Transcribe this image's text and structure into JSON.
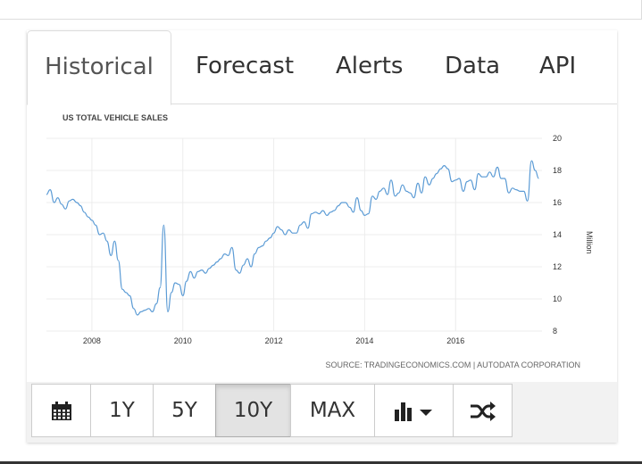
{
  "tabs": [
    {
      "label": "Historical"
    },
    {
      "label": "Forecast"
    },
    {
      "label": "Alerts"
    },
    {
      "label": "Data"
    },
    {
      "label": "API"
    }
  ],
  "toolbar": {
    "calendar_icon": "calendar-icon",
    "range_buttons": [
      "1Y",
      "5Y",
      "10Y",
      "MAX"
    ],
    "active_range": "10Y",
    "chart_type_icon": "bar-chart-icon",
    "dropdown_icon": "caret-down-icon",
    "compare_icon": "shuffle-icon"
  },
  "chart_data": {
    "type": "line",
    "title": "US TOTAL VEHICLE SALES",
    "ylabel": "Million",
    "source": "SOURCE: TRADINGECONOMICS.COM | AUTODATA CORPORATION",
    "ylim": [
      8,
      20
    ],
    "yticks": [
      8,
      10,
      12,
      14,
      16,
      18,
      20
    ],
    "xlim": [
      2007.0,
      2017.9
    ],
    "xticks": [
      2008,
      2010,
      2012,
      2014,
      2016
    ],
    "grid": true,
    "line_color": "#5b9bd5",
    "series": [
      {
        "x": [
          2007.0,
          2007.08,
          2007.17,
          2007.25,
          2007.33,
          2007.42,
          2007.5,
          2007.58,
          2007.67,
          2007.75,
          2007.83,
          2007.92,
          2008.0,
          2008.08,
          2008.17,
          2008.25,
          2008.33,
          2008.42,
          2008.5,
          2008.58,
          2008.67,
          2008.75,
          2008.83,
          2008.92,
          2009.0,
          2009.08,
          2009.17,
          2009.25,
          2009.33,
          2009.42,
          2009.5,
          2009.58,
          2009.67,
          2009.75,
          2009.83,
          2009.92,
          2010.0,
          2010.08,
          2010.17,
          2010.25,
          2010.33,
          2010.42,
          2010.5,
          2010.58,
          2010.67,
          2010.75,
          2010.83,
          2010.92,
          2011.0,
          2011.08,
          2011.17,
          2011.25,
          2011.33,
          2011.42,
          2011.5,
          2011.58,
          2011.67,
          2011.75,
          2011.83,
          2011.92,
          2012.0,
          2012.08,
          2012.17,
          2012.25,
          2012.33,
          2012.42,
          2012.5,
          2012.58,
          2012.67,
          2012.75,
          2012.83,
          2012.92,
          2013.0,
          2013.08,
          2013.17,
          2013.25,
          2013.33,
          2013.42,
          2013.5,
          2013.58,
          2013.67,
          2013.75,
          2013.83,
          2013.92,
          2014.0,
          2014.08,
          2014.17,
          2014.25,
          2014.33,
          2014.42,
          2014.5,
          2014.58,
          2014.67,
          2014.75,
          2014.83,
          2014.92,
          2015.0,
          2015.08,
          2015.17,
          2015.25,
          2015.33,
          2015.42,
          2015.5,
          2015.58,
          2015.67,
          2015.75,
          2015.83,
          2015.92,
          2016.0,
          2016.08,
          2016.17,
          2016.25,
          2016.33,
          2016.42,
          2016.5,
          2016.58,
          2016.67,
          2016.75,
          2016.83,
          2016.92,
          2017.0,
          2017.08,
          2017.17,
          2017.25,
          2017.33,
          2017.42,
          2017.5,
          2017.58,
          2017.67,
          2017.75,
          2017.83
        ],
        "y": [
          16.5,
          16.8,
          16.0,
          16.3,
          15.9,
          15.6,
          16.1,
          16.2,
          16.0,
          15.8,
          15.4,
          15.1,
          14.9,
          14.6,
          14.0,
          14.1,
          13.6,
          12.7,
          13.6,
          12.4,
          10.6,
          10.4,
          10.2,
          9.4,
          9.0,
          9.2,
          9.3,
          9.4,
          9.2,
          9.7,
          10.7,
          14.6,
          9.2,
          10.4,
          11.0,
          10.9,
          10.2,
          11.1,
          11.7,
          11.3,
          11.7,
          11.8,
          11.6,
          11.9,
          12.1,
          12.3,
          12.5,
          12.8,
          12.7,
          13.2,
          11.8,
          11.6,
          12.1,
          12.5,
          12.0,
          12.8,
          13.2,
          13.3,
          13.6,
          13.8,
          14.1,
          14.5,
          14.3,
          14.0,
          14.3,
          14.1,
          14.1,
          14.6,
          14.8,
          14.4,
          15.3,
          15.4,
          15.3,
          15.5,
          15.2,
          15.4,
          15.5,
          15.8,
          16.0,
          16.0,
          15.7,
          15.4,
          16.3,
          15.5,
          15.2,
          15.3,
          16.4,
          16.2,
          16.7,
          16.9,
          16.5,
          17.4,
          16.4,
          16.6,
          17.1,
          16.7,
          16.6,
          16.3,
          17.2,
          16.6,
          17.6,
          17.1,
          17.5,
          17.8,
          18.1,
          18.3,
          18.1,
          17.3,
          17.4,
          17.5,
          16.7,
          17.3,
          17.4,
          16.8,
          17.8,
          17.6,
          17.6,
          17.9,
          17.6,
          18.2,
          17.5,
          17.5,
          16.6,
          16.9,
          16.8,
          16.7,
          16.7,
          16.1,
          18.6,
          18.0,
          17.5
        ]
      }
    ]
  }
}
